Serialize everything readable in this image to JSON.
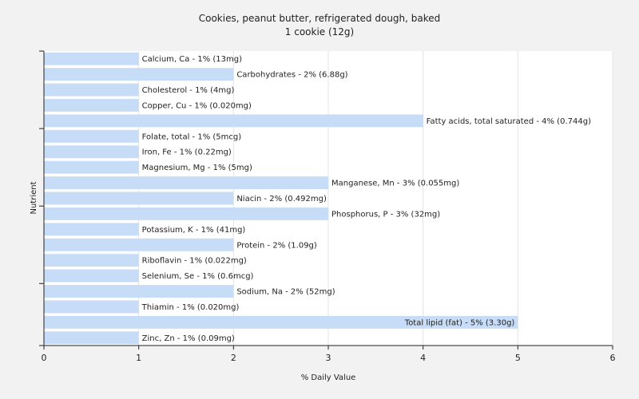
{
  "chart_data": {
    "type": "bar",
    "orientation": "horizontal",
    "title": "Cookies, peanut butter, refrigerated dough, baked",
    "subtitle": "1 cookie (12g)",
    "xlabel": "% Daily Value",
    "ylabel": "Nutrient",
    "xlim": [
      0,
      6
    ],
    "xticks": [
      "0",
      "1",
      "2",
      "3",
      "4",
      "5",
      "6"
    ],
    "grid": "vertical",
    "bar_color": "#c6dcf7",
    "categories": [
      "Calcium, Ca",
      "Carbohydrates",
      "Cholesterol",
      "Copper, Cu",
      "Fatty acids, total saturated",
      "Folate, total",
      "Iron, Fe",
      "Magnesium, Mg",
      "Manganese, Mn",
      "Niacin",
      "Phosphorus, P",
      "Potassium, K",
      "Protein",
      "Riboflavin",
      "Selenium, Se",
      "Sodium, Na",
      "Thiamin",
      "Total lipid (fat)",
      "Zinc, Zn"
    ],
    "values": [
      1,
      2,
      1,
      1,
      4,
      1,
      1,
      1,
      3,
      2,
      3,
      1,
      2,
      1,
      1,
      2,
      1,
      5,
      1
    ],
    "labels": [
      "Calcium, Ca - 1% (13mg)",
      "Carbohydrates - 2% (6.88g)",
      "Cholesterol - 1% (4mg)",
      "Copper, Cu - 1% (0.020mg)",
      "Fatty acids, total saturated - 4% (0.744g)",
      "Folate, total - 1% (5mcg)",
      "Iron, Fe - 1% (0.22mg)",
      "Magnesium, Mg - 1% (5mg)",
      "Manganese, Mn - 3% (0.055mg)",
      "Niacin - 2% (0.492mg)",
      "Phosphorus, P - 3% (32mg)",
      "Potassium, K - 1% (41mg)",
      "Protein - 2% (1.09g)",
      "Riboflavin - 1% (0.022mg)",
      "Selenium, Se - 1% (0.6mcg)",
      "Sodium, Na - 2% (52mg)",
      "Thiamin - 1% (0.020mg)",
      "Total lipid (fat) - 5% (3.30g)",
      "Zinc, Zn - 1% (0.09mg)"
    ]
  }
}
